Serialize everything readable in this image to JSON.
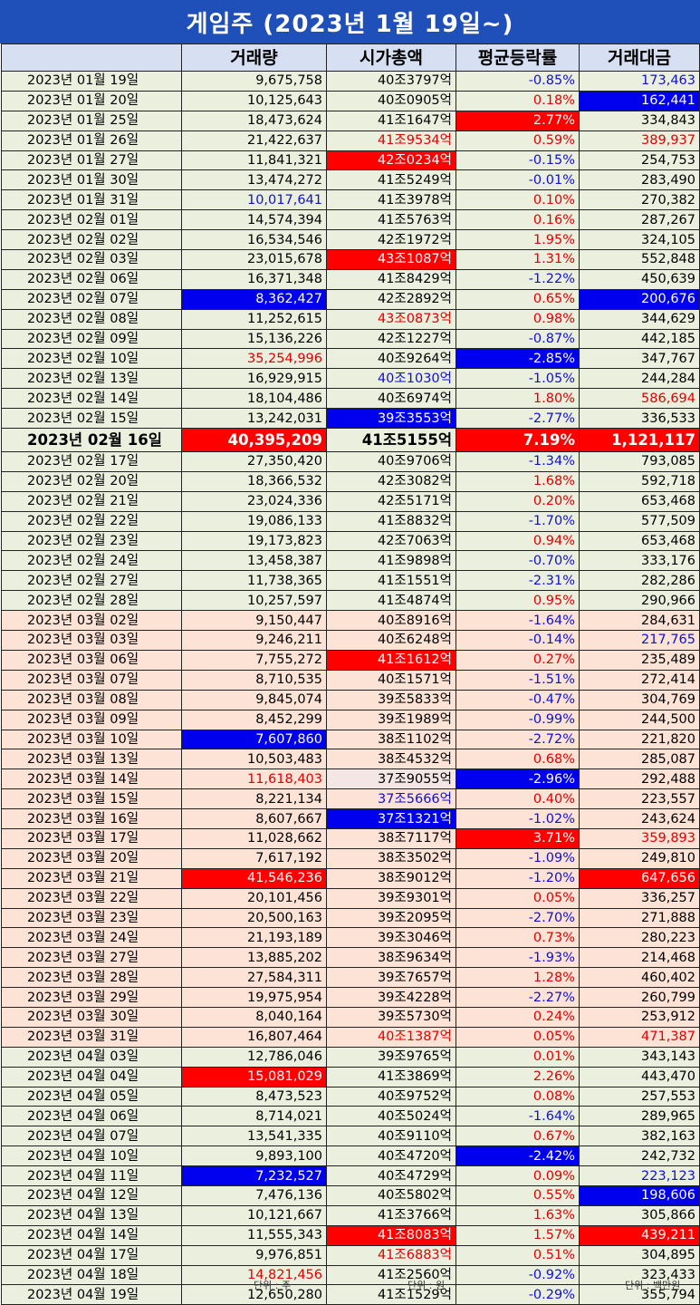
{
  "title": "게임주 (2023년 1월 19일~)",
  "headers": [
    "",
    "거래량",
    "시가총액",
    "평균등락률",
    "거래대금"
  ],
  "units": [
    "단위 : 주",
    "단위 : 원",
    "단위 : 백만원"
  ],
  "rows": [
    {
      "date": "2023년 01월 19일",
      "g": "jan",
      "vol": "9,675,758",
      "cap": "40조3797억",
      "chg": "-0.85%",
      "amt": "173,463",
      "vs": "",
      "cs": "",
      "chs": "b",
      "as": "b"
    },
    {
      "date": "2023년 01월 20일",
      "g": "jan",
      "vol": "10,125,643",
      "cap": "40조0905억",
      "chg": "0.18%",
      "amt": "162,441",
      "vs": "",
      "cs": "",
      "chs": "r",
      "as": "hb"
    },
    {
      "date": "2023년 01월 25일",
      "g": "jan",
      "vol": "18,473,624",
      "cap": "41조1647억",
      "chg": "2.77%",
      "amt": "334,843",
      "vs": "",
      "cs": "",
      "chs": "hr",
      "as": ""
    },
    {
      "date": "2023년 01월 26일",
      "g": "jan",
      "vol": "21,422,637",
      "cap": "41조9534억",
      "chg": "0.59%",
      "amt": "389,937",
      "vs": "",
      "cs": "r",
      "chs": "r",
      "as": "r"
    },
    {
      "date": "2023년 01월 27일",
      "g": "jan",
      "vol": "11,841,321",
      "cap": "42조0234억",
      "chg": "-0.15%",
      "amt": "254,753",
      "vs": "",
      "cs": "hr",
      "chs": "b",
      "as": ""
    },
    {
      "date": "2023년 01월 30일",
      "g": "jan",
      "vol": "13,474,272",
      "cap": "41조5249억",
      "chg": "-0.01%",
      "amt": "283,490",
      "vs": "",
      "cs": "",
      "chs": "b",
      "as": ""
    },
    {
      "date": "2023년 01월 31일",
      "g": "jan",
      "vol": "10,017,641",
      "cap": "41조3978억",
      "chg": "0.10%",
      "amt": "270,382",
      "vs": "b",
      "cs": "",
      "chs": "r",
      "as": ""
    },
    {
      "date": "2023년 02월 01일",
      "g": "feb",
      "vol": "14,574,394",
      "cap": "41조5763억",
      "chg": "0.16%",
      "amt": "287,267",
      "vs": "",
      "cs": "",
      "chs": "r",
      "as": ""
    },
    {
      "date": "2023년 02월 02일",
      "g": "feb",
      "vol": "16,534,546",
      "cap": "42조1972억",
      "chg": "1.95%",
      "amt": "324,105",
      "vs": "",
      "cs": "",
      "chs": "r",
      "as": ""
    },
    {
      "date": "2023년 02월 03일",
      "g": "feb",
      "vol": "23,015,678",
      "cap": "43조1087억",
      "chg": "1.31%",
      "amt": "552,848",
      "vs": "",
      "cs": "hr",
      "chs": "r",
      "as": ""
    },
    {
      "date": "2023년 02월 06일",
      "g": "feb",
      "vol": "16,371,348",
      "cap": "41조8429억",
      "chg": "-1.22%",
      "amt": "450,639",
      "vs": "",
      "cs": "",
      "chs": "b",
      "as": ""
    },
    {
      "date": "2023년 02월 07일",
      "g": "feb",
      "vol": "8,362,427",
      "cap": "42조2892억",
      "chg": "0.65%",
      "amt": "200,676",
      "vs": "hb",
      "cs": "",
      "chs": "r",
      "as": "hb"
    },
    {
      "date": "2023년 02월 08일",
      "g": "feb",
      "vol": "11,252,615",
      "cap": "43조0873억",
      "chg": "0.98%",
      "amt": "344,629",
      "vs": "",
      "cs": "r",
      "chs": "r",
      "as": ""
    },
    {
      "date": "2023년 02월 09일",
      "g": "feb",
      "vol": "15,136,226",
      "cap": "42조1227억",
      "chg": "-0.87%",
      "amt": "442,185",
      "vs": "",
      "cs": "",
      "chs": "b",
      "as": ""
    },
    {
      "date": "2023년 02월 10일",
      "g": "feb",
      "vol": "35,254,996",
      "cap": "40조9264억",
      "chg": "-2.85%",
      "amt": "347,767",
      "vs": "r",
      "cs": "",
      "chs": "hb",
      "as": ""
    },
    {
      "date": "2023년 02월 13일",
      "g": "feb",
      "vol": "16,929,915",
      "cap": "40조1030억",
      "chg": "-1.05%",
      "amt": "244,284",
      "vs": "",
      "cs": "b",
      "chs": "b",
      "as": ""
    },
    {
      "date": "2023년 02월 14일",
      "g": "feb",
      "vol": "18,104,486",
      "cap": "40조6974억",
      "chg": "1.80%",
      "amt": "586,694",
      "vs": "",
      "cs": "",
      "chs": "r",
      "as": "r"
    },
    {
      "date": "2023년 02월 15일",
      "g": "feb",
      "vol": "13,242,031",
      "cap": "39조3553억",
      "chg": "-2.77%",
      "amt": "336,533",
      "vs": "",
      "cs": "hb",
      "chs": "b",
      "as": ""
    },
    {
      "date": "2023년 02월 16일",
      "g": "feb",
      "big": true,
      "vol": "40,395,209",
      "cap": "41조5155억",
      "chg": "7.19%",
      "amt": "1,121,117",
      "vs": "hr",
      "cs": "",
      "chs": "hr",
      "as": "hr"
    },
    {
      "date": "2023년 02월 17일",
      "g": "feb",
      "vol": "27,350,420",
      "cap": "40조9706억",
      "chg": "-1.34%",
      "amt": "793,085",
      "vs": "",
      "cs": "",
      "chs": "b",
      "as": ""
    },
    {
      "date": "2023년 02월 20일",
      "g": "feb",
      "vol": "18,366,532",
      "cap": "42조3082억",
      "chg": "1.68%",
      "amt": "592,718",
      "vs": "",
      "cs": "",
      "chs": "r",
      "as": ""
    },
    {
      "date": "2023년 02월 21일",
      "g": "feb",
      "vol": "23,024,336",
      "cap": "42조5171억",
      "chg": "0.20%",
      "amt": "653,468",
      "vs": "",
      "cs": "",
      "chs": "r",
      "as": ""
    },
    {
      "date": "2023년 02월 22일",
      "g": "feb",
      "vol": "19,086,133",
      "cap": "41조8832억",
      "chg": "-1.70%",
      "amt": "577,509",
      "vs": "",
      "cs": "",
      "chs": "b",
      "as": ""
    },
    {
      "date": "2023년 02월 23일",
      "g": "feb",
      "vol": "19,173,823",
      "cap": "42조7063억",
      "chg": "0.94%",
      "amt": "653,468",
      "vs": "",
      "cs": "",
      "chs": "r",
      "as": ""
    },
    {
      "date": "2023년 02월 24일",
      "g": "feb",
      "vol": "13,458,387",
      "cap": "41조9898억",
      "chg": "-0.70%",
      "amt": "333,176",
      "vs": "",
      "cs": "",
      "chs": "b",
      "as": ""
    },
    {
      "date": "2023년 02월 27일",
      "g": "feb",
      "vol": "11,738,365",
      "cap": "41조1551억",
      "chg": "-2.31%",
      "amt": "282,286",
      "vs": "",
      "cs": "",
      "chs": "b",
      "as": ""
    },
    {
      "date": "2023년 02월 28일",
      "g": "feb",
      "vol": "10,257,597",
      "cap": "41조4874억",
      "chg": "0.95%",
      "amt": "290,966",
      "vs": "",
      "cs": "",
      "chs": "r",
      "as": ""
    },
    {
      "date": "2023년 03월 02일",
      "g": "mar",
      "vol": "9,150,447",
      "cap": "40조8916억",
      "chg": "-1.64%",
      "amt": "284,631",
      "vs": "",
      "cs": "",
      "chs": "b",
      "as": ""
    },
    {
      "date": "2023년 03월 03일",
      "g": "mar",
      "vol": "9,246,211",
      "cap": "40조6248억",
      "chg": "-0.14%",
      "amt": "217,765",
      "vs": "",
      "cs": "",
      "chs": "b",
      "as": "b"
    },
    {
      "date": "2023년 03월 06일",
      "g": "mar",
      "vol": "7,755,272",
      "cap": "41조1612억",
      "chg": "0.27%",
      "amt": "235,489",
      "vs": "",
      "cs": "hr",
      "chs": "r",
      "as": ""
    },
    {
      "date": "2023년 03월 07일",
      "g": "mar",
      "vol": "8,710,535",
      "cap": "40조1571억",
      "chg": "-1.51%",
      "amt": "272,414",
      "vs": "",
      "cs": "",
      "chs": "b",
      "as": ""
    },
    {
      "date": "2023년 03월 08일",
      "g": "mar",
      "vol": "9,845,074",
      "cap": "39조5833억",
      "chg": "-0.47%",
      "amt": "304,769",
      "vs": "",
      "cs": "",
      "chs": "b",
      "as": ""
    },
    {
      "date": "2023년 03월 09일",
      "g": "mar",
      "vol": "8,452,299",
      "cap": "39조1989억",
      "chg": "-0.99%",
      "amt": "244,500",
      "vs": "",
      "cs": "",
      "chs": "b",
      "as": ""
    },
    {
      "date": "2023년 03월 10일",
      "g": "mar",
      "vol": "7,607,860",
      "cap": "38조1102억",
      "chg": "-2.72%",
      "amt": "221,820",
      "vs": "hb",
      "cs": "",
      "chs": "b",
      "as": ""
    },
    {
      "date": "2023년 03월 13일",
      "g": "mar",
      "vol": "10,503,483",
      "cap": "38조4532억",
      "chg": "0.68%",
      "amt": "285,087",
      "vs": "",
      "cs": "",
      "chs": "r",
      "as": ""
    },
    {
      "date": "2023년 03월 14일",
      "g": "mar",
      "vol": "11,618,403",
      "cap": "37조9055억",
      "chg": "-2.96%",
      "amt": "292,488",
      "vs": "r",
      "cs": "hp",
      "chs": "hb",
      "as": ""
    },
    {
      "date": "2023년 03월 15일",
      "g": "mar",
      "vol": "8,221,134",
      "cap": "37조5666억",
      "chg": "0.40%",
      "amt": "223,557",
      "vs": "",
      "cs": "b",
      "chs": "r",
      "as": ""
    },
    {
      "date": "2023년 03월 16일",
      "g": "mar",
      "vol": "8,607,667",
      "cap": "37조1321억",
      "chg": "-1.02%",
      "amt": "243,624",
      "vs": "",
      "cs": "hb",
      "chs": "b",
      "as": ""
    },
    {
      "date": "2023년 03월 17일",
      "g": "mar",
      "vol": "11,028,662",
      "cap": "38조7117억",
      "chg": "3.71%",
      "amt": "359,893",
      "vs": "",
      "cs": "",
      "chs": "hr",
      "as": "r"
    },
    {
      "date": "2023년 03월 20일",
      "g": "mar",
      "vol": "7,617,192",
      "cap": "38조3502억",
      "chg": "-1.09%",
      "amt": "249,810",
      "vs": "",
      "cs": "",
      "chs": "b",
      "as": ""
    },
    {
      "date": "2023년 03월 21일",
      "g": "mar",
      "vol": "41,546,236",
      "cap": "38조9012억",
      "chg": "-1.20%",
      "amt": "647,656",
      "vs": "hr",
      "cs": "",
      "chs": "b",
      "as": "hr"
    },
    {
      "date": "2023년 03월 22일",
      "g": "mar",
      "vol": "20,101,456",
      "cap": "39조9301억",
      "chg": "0.05%",
      "amt": "336,257",
      "vs": "",
      "cs": "",
      "chs": "r",
      "as": ""
    },
    {
      "date": "2023년 03월 23일",
      "g": "mar",
      "vol": "20,500,163",
      "cap": "39조2095억",
      "chg": "-2.70%",
      "amt": "271,888",
      "vs": "",
      "cs": "",
      "chs": "b",
      "as": ""
    },
    {
      "date": "2023년 03월 24일",
      "g": "mar",
      "vol": "21,193,189",
      "cap": "39조3046억",
      "chg": "0.73%",
      "amt": "280,223",
      "vs": "",
      "cs": "",
      "chs": "r",
      "as": ""
    },
    {
      "date": "2023년 03월 27일",
      "g": "mar",
      "vol": "13,885,202",
      "cap": "38조9634억",
      "chg": "-1.93%",
      "amt": "214,468",
      "vs": "",
      "cs": "",
      "chs": "b",
      "as": ""
    },
    {
      "date": "2023년 03월 28일",
      "g": "mar",
      "vol": "27,584,311",
      "cap": "39조7657억",
      "chg": "1.28%",
      "amt": "460,402",
      "vs": "",
      "cs": "",
      "chs": "r",
      "as": ""
    },
    {
      "date": "2023년 03월 29일",
      "g": "mar",
      "vol": "19,975,954",
      "cap": "39조4228억",
      "chg": "-2.27%",
      "amt": "260,799",
      "vs": "",
      "cs": "",
      "chs": "b",
      "as": ""
    },
    {
      "date": "2023년 03월 30일",
      "g": "mar",
      "vol": "8,040,164",
      "cap": "39조5730억",
      "chg": "0.24%",
      "amt": "253,912",
      "vs": "",
      "cs": "",
      "chs": "r",
      "as": ""
    },
    {
      "date": "2023년 03월 31일",
      "g": "mar",
      "vol": "16,807,464",
      "cap": "40조1387억",
      "chg": "0.05%",
      "amt": "471,387",
      "vs": "",
      "cs": "r",
      "chs": "r",
      "as": "r"
    },
    {
      "date": "2023년 04월 03일",
      "g": "apr",
      "vol": "12,786,046",
      "cap": "39조9765억",
      "chg": "0.01%",
      "amt": "343,143",
      "vs": "",
      "cs": "",
      "chs": "r",
      "as": ""
    },
    {
      "date": "2023년 04월 04일",
      "g": "apr",
      "vol": "15,081,029",
      "cap": "41조3869억",
      "chg": "2.26%",
      "amt": "443,470",
      "vs": "hr",
      "cs": "",
      "chs": "r",
      "as": ""
    },
    {
      "date": "2023년 04월 05일",
      "g": "apr",
      "vol": "8,473,523",
      "cap": "40조9752억",
      "chg": "0.08%",
      "amt": "257,553",
      "vs": "",
      "cs": "",
      "chs": "r",
      "as": ""
    },
    {
      "date": "2023년 04월 06일",
      "g": "apr",
      "vol": "8,714,021",
      "cap": "40조5024억",
      "chg": "-1.64%",
      "amt": "289,965",
      "vs": "",
      "cs": "",
      "chs": "b",
      "as": ""
    },
    {
      "date": "2023년 04월 07일",
      "g": "apr",
      "vol": "13,541,335",
      "cap": "40조9110억",
      "chg": "0.67%",
      "amt": "382,163",
      "vs": "",
      "cs": "",
      "chs": "r",
      "as": ""
    },
    {
      "date": "2023년 04월 10일",
      "g": "apr",
      "vol": "9,893,100",
      "cap": "40조4720억",
      "chg": "-2.42%",
      "amt": "242,732",
      "vs": "",
      "cs": "",
      "chs": "hb",
      "as": ""
    },
    {
      "date": "2023년 04월 11일",
      "g": "apr",
      "vol": "7,232,527",
      "cap": "40조4729억",
      "chg": "0.09%",
      "amt": "223,123",
      "vs": "hb",
      "cs": "",
      "chs": "r",
      "as": "b"
    },
    {
      "date": "2023년 04월 12일",
      "g": "apr",
      "vol": "7,476,136",
      "cap": "40조5802억",
      "chg": "0.55%",
      "amt": "198,606",
      "vs": "",
      "cs": "",
      "chs": "r",
      "as": "hb"
    },
    {
      "date": "2023년 04월 13일",
      "g": "apr",
      "vol": "10,121,667",
      "cap": "41조3766억",
      "chg": "1.63%",
      "amt": "305,866",
      "vs": "",
      "cs": "",
      "chs": "r",
      "as": ""
    },
    {
      "date": "2023년 04월 14일",
      "g": "apr",
      "vol": "11,555,343",
      "cap": "41조8083억",
      "chg": "1.57%",
      "amt": "439,211",
      "vs": "",
      "cs": "hr",
      "chs": "r",
      "as": "hr"
    },
    {
      "date": "2023년 04월 17일",
      "g": "apr",
      "vol": "9,976,851",
      "cap": "41조6883억",
      "chg": "0.51%",
      "amt": "304,895",
      "vs": "",
      "cs": "r",
      "chs": "r",
      "as": ""
    },
    {
      "date": "2023년 04월 18일",
      "g": "apr",
      "vol": "14,821,456",
      "cap": "41조2560억",
      "chg": "-0.92%",
      "amt": "323,433",
      "vs": "r",
      "cs": "",
      "chs": "b",
      "as": ""
    },
    {
      "date": "2023년 04월 19일",
      "g": "apr",
      "vol": "12,650,280",
      "cap": "41조1529억",
      "chg": "-0.29%",
      "amt": "355,794",
      "vs": "",
      "cs": "",
      "chs": "b",
      "as": ""
    }
  ]
}
